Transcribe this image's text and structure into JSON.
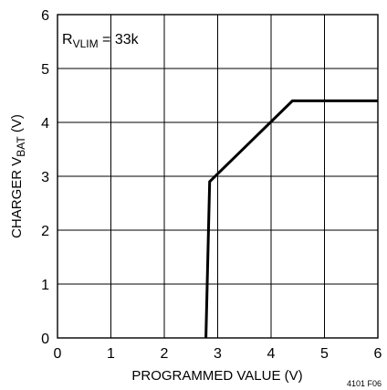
{
  "chart_data": {
    "type": "line",
    "title": "",
    "xlabel": "PROGRAMMED VALUE (V)",
    "ylabel": {
      "main": "CHARGER V",
      "sub": "BAT",
      "unit": " (V)"
    },
    "xlim": [
      0,
      6
    ],
    "ylim": [
      0,
      6
    ],
    "xticks": [
      "0",
      "1",
      "2",
      "3",
      "4",
      "5",
      "6"
    ],
    "yticks": [
      "0",
      "1",
      "2",
      "3",
      "4",
      "5",
      "6"
    ],
    "grid": true,
    "series": [
      {
        "x": [
          2.78,
          2.85,
          4.4,
          6.0
        ],
        "y": [
          0,
          2.9,
          4.4,
          4.4
        ]
      }
    ],
    "annotation": {
      "main": "R",
      "sub": "VLIM",
      "rest": " = 33k"
    },
    "figure_id": "4101 F06"
  }
}
